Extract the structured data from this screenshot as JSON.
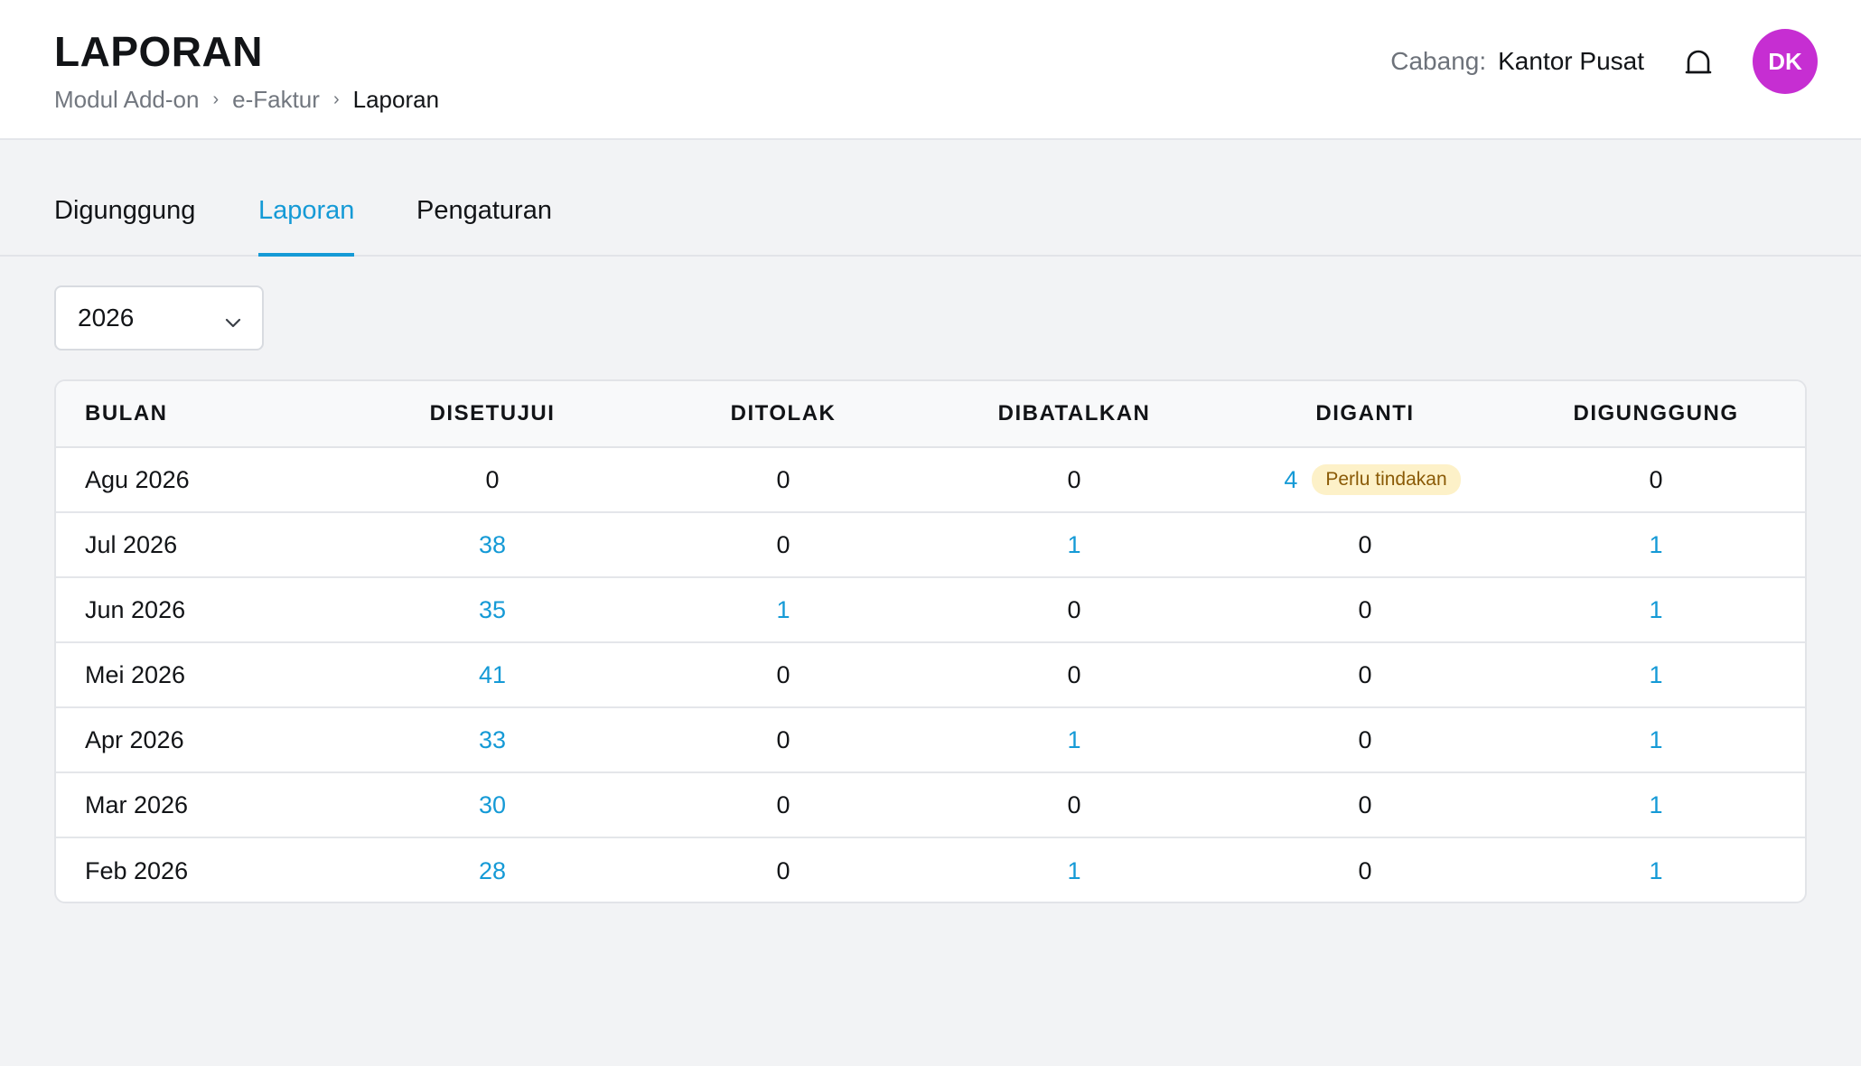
{
  "header": {
    "title": "LAPORAN",
    "breadcrumb": [
      "Modul Add-on",
      "e-Faktur",
      "Laporan"
    ],
    "breadcrumb_separator": "›",
    "branch_label": "Cabang:",
    "branch_value": "Kantor Pusat",
    "bell_icon": "bell-icon",
    "avatar_initials": "DK",
    "avatar_color": "#c62ed2"
  },
  "tabs": [
    {
      "label": "Digunggung",
      "active": false
    },
    {
      "label": "Laporan",
      "active": true
    },
    {
      "label": "Pengaturan",
      "active": false
    }
  ],
  "accent_color": "#159ad6",
  "filter": {
    "year": "2026",
    "icon": "chevron-down-icon"
  },
  "table": {
    "columns": [
      "BULAN",
      "DISETUJUI",
      "DITOLAK",
      "DIBATALKAN",
      "DIGANTI",
      "DIGUNGGUNG"
    ],
    "rows": [
      {
        "month": "Agu 2026",
        "disetujui": "0",
        "ditolak": "0",
        "dibatalkan": "0",
        "diganti": "4",
        "digunggung": "0",
        "badge": "Perlu tindakan"
      },
      {
        "month": "Jul 2026",
        "disetujui": "38",
        "ditolak": "0",
        "dibatalkan": "1",
        "diganti": "0",
        "digunggung": "1"
      },
      {
        "month": "Jun 2026",
        "disetujui": "35",
        "ditolak": "1",
        "dibatalkan": "0",
        "diganti": "0",
        "digunggung": "1"
      },
      {
        "month": "Mei 2026",
        "disetujui": "41",
        "ditolak": "0",
        "dibatalkan": "0",
        "diganti": "0",
        "digunggung": "1"
      },
      {
        "month": "Apr 2026",
        "disetujui": "33",
        "ditolak": "0",
        "dibatalkan": "1",
        "diganti": "0",
        "digunggung": "1"
      },
      {
        "month": "Mar 2026",
        "disetujui": "30",
        "ditolak": "0",
        "dibatalkan": "0",
        "diganti": "0",
        "digunggung": "1"
      },
      {
        "month": "Feb 2026",
        "disetujui": "28",
        "ditolak": "0",
        "dibatalkan": "1",
        "diganti": "0",
        "digunggung": "1"
      }
    ]
  }
}
